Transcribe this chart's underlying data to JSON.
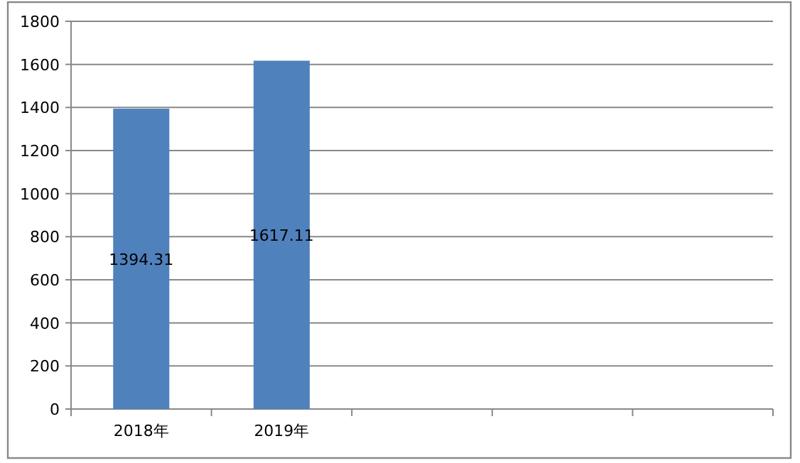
{
  "chart_data": {
    "type": "bar",
    "categories": [
      "2018年",
      "2019年",
      null,
      null,
      null
    ],
    "series": [
      {
        "color": "#4f81bd",
        "values": [
          1394.31,
          1617.11,
          null,
          null,
          null
        ]
      }
    ],
    "ylim": [
      0,
      1800
    ],
    "yticks": [
      0,
      200,
      400,
      600,
      800,
      1000,
      1200,
      1400,
      1600,
      1800
    ],
    "grid": "y",
    "data_labels": true
  }
}
